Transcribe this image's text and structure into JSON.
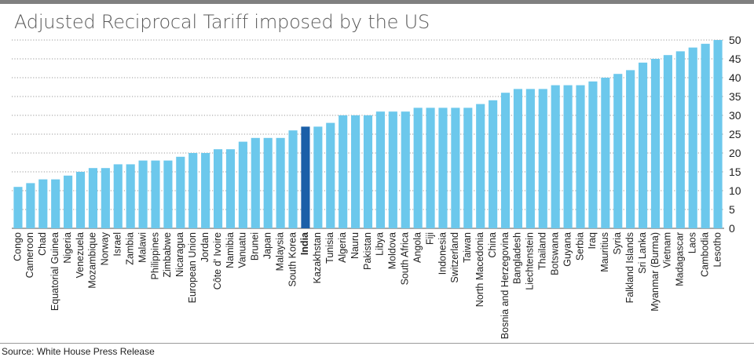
{
  "title": "Adjusted Reciprocal Tariff imposed by the US",
  "source": "Source: White House Press Release",
  "colors": {
    "bar": "#6cc8ec",
    "highlight": "#1b5fa8",
    "grid": "#9a9a9a",
    "text": "#222222",
    "topbar": "#808080"
  },
  "chart_data": {
    "type": "bar",
    "title": "Adjusted Reciprocal Tariff imposed by the US",
    "xlabel": "",
    "ylabel": "",
    "ylim": [
      0,
      50
    ],
    "yticks": [
      0,
      5,
      10,
      15,
      20,
      25,
      30,
      35,
      40,
      45,
      50
    ],
    "grid": true,
    "y_axis_side": "right",
    "highlight": "India",
    "categories": [
      "Congo",
      "Cameroon",
      "Chad",
      "Equatorial Guinea",
      "Nigeria",
      "Venezuela",
      "Mozambique",
      "Norway",
      "Israel",
      "Zambia",
      "Malawi",
      "Philippines",
      "Zimbabwe",
      "Nicaragua",
      "European Union",
      "Jordan",
      "Côte d' Ivoire",
      "Namibia",
      "Vanuatu",
      "Brunei",
      "Japan",
      "Malaysia",
      "South Korea",
      "India",
      "Kazakhstan",
      "Tunisia",
      "Algeria",
      "Nauru",
      "Pakistan",
      "Libya",
      "Moldova",
      "South Africa",
      "Angola",
      "Fiji",
      "Indonesia",
      "Switzerland",
      "Taiwan",
      "North Macedonia",
      "China",
      "Bosnia and Herzegovina",
      "Bangladesh",
      "Liechtenstein",
      "Thailand",
      "Botswana",
      "Guyana",
      "Serbia",
      "Iraq",
      "Mauritius",
      "Syria",
      "Falkland Islands",
      "Sri Lanka",
      "Myanmar (Burma)",
      "Vietnam",
      "Madagascar",
      "Laos",
      "Cambodia",
      "Lesotho"
    ],
    "values": [
      11,
      12,
      13,
      13,
      14,
      15,
      16,
      16,
      17,
      17,
      18,
      18,
      18,
      19,
      20,
      20,
      21,
      21,
      23,
      24,
      24,
      24,
      26,
      27,
      27,
      28,
      30,
      30,
      30,
      31,
      31,
      31,
      32,
      32,
      32,
      32,
      32,
      33,
      34,
      36,
      37,
      37,
      37,
      38,
      38,
      38,
      39,
      40,
      41,
      42,
      44,
      45,
      46,
      47,
      48,
      49,
      50
    ]
  }
}
